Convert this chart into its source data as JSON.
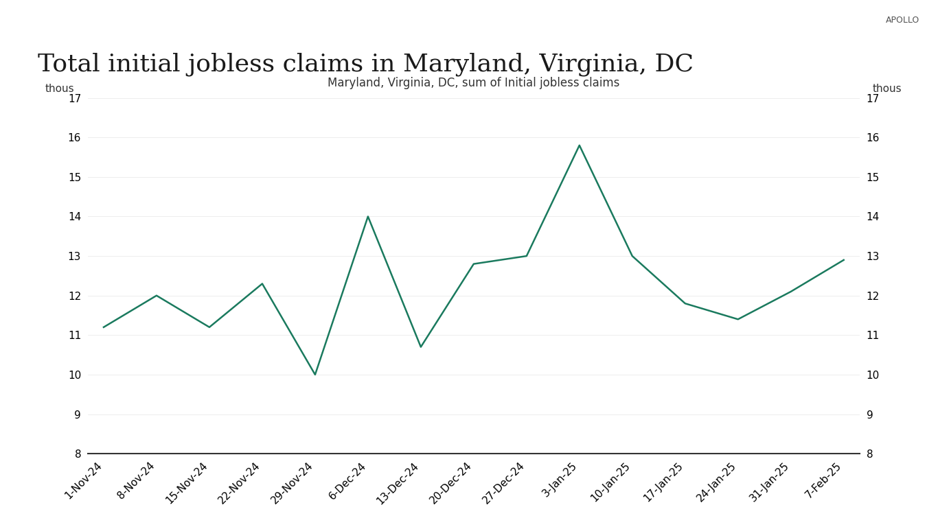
{
  "title": "Total initial jobless claims in Maryland, Virginia, DC",
  "watermark": "APOLLO",
  "legend_label": "Maryland, Virginia, DC, sum of Initial jobless claims",
  "x_labels": [
    "1-Nov-24",
    "8-Nov-24",
    "15-Nov-24",
    "22-Nov-24",
    "29-Nov-24",
    "6-Dec-24",
    "13-Dec-24",
    "20-Dec-24",
    "27-Dec-24",
    "3-Jan-25",
    "10-Jan-25",
    "17-Jan-25",
    "24-Jan-25",
    "31-Jan-25",
    "7-Feb-25"
  ],
  "y_values": [
    11.2,
    12.0,
    11.2,
    12.3,
    10.0,
    14.0,
    10.7,
    12.8,
    13.0,
    15.8,
    13.0,
    11.8,
    11.4,
    12.1,
    12.9
  ],
  "ylim": [
    8,
    17
  ],
  "yticks": [
    8,
    9,
    10,
    11,
    12,
    13,
    14,
    15,
    16,
    17
  ],
  "ylabel_unit": "thous",
  "line_color": "#1a7a5e",
  "line_width": 1.8,
  "background_color": "#ffffff",
  "title_fontsize": 26,
  "axis_fontsize": 11,
  "legend_fontsize": 12,
  "watermark_fontsize": 9
}
